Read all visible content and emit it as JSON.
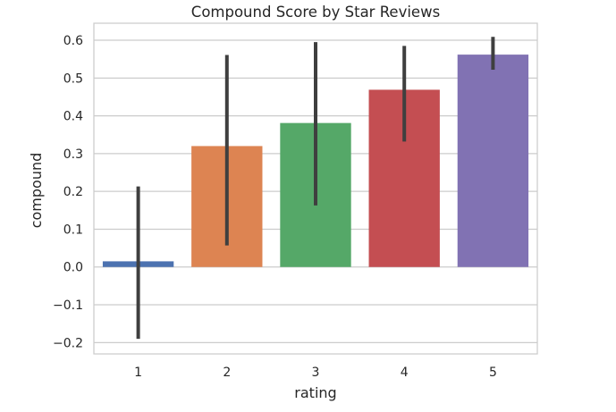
{
  "chart_data": {
    "type": "bar",
    "title": "Compound Score by Star Reviews",
    "xlabel": "rating",
    "ylabel": "compound",
    "categories": [
      "1",
      "2",
      "3",
      "4",
      "5"
    ],
    "values": [
      0.015,
      0.32,
      0.381,
      0.469,
      0.562
    ],
    "error_low": [
      -0.19,
      0.057,
      0.163,
      0.332,
      0.522
    ],
    "error_high": [
      0.213,
      0.561,
      0.595,
      0.585,
      0.609
    ],
    "colors": [
      "#4c72b0",
      "#dd8452",
      "#55a868",
      "#c44e52",
      "#8172b3"
    ],
    "ylim": [
      -0.23,
      0.645
    ],
    "yticks": [
      -0.2,
      -0.1,
      0.0,
      0.1,
      0.2,
      0.3,
      0.4,
      0.5,
      0.6
    ],
    "ytick_labels": [
      "−0.2",
      "−0.1",
      "0.0",
      "0.1",
      "0.2",
      "0.3",
      "0.4",
      "0.5",
      "0.6"
    ],
    "grid": true,
    "error_bar_color": "#3f3f3f",
    "grid_color": "#cccccc"
  }
}
